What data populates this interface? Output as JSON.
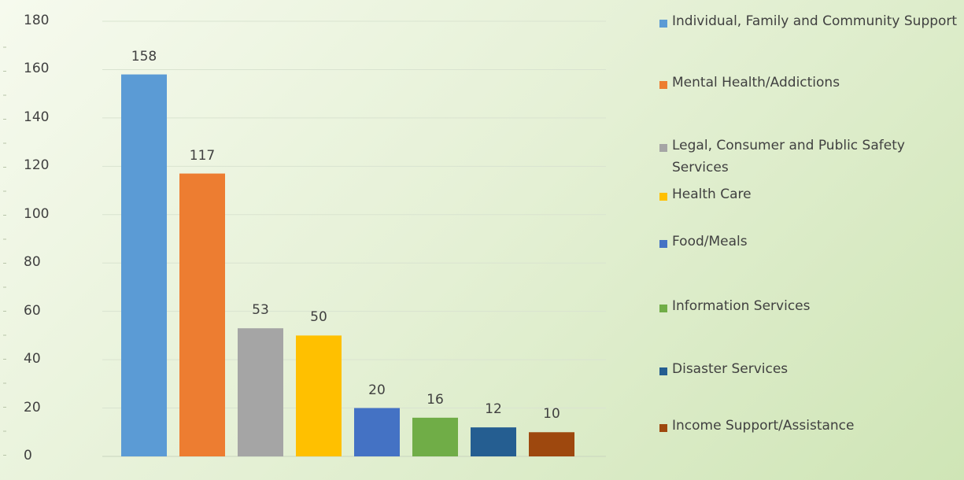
{
  "chart_data": {
    "type": "bar",
    "title": "",
    "xlabel": "",
    "ylabel": "",
    "ylim": [
      0,
      180
    ],
    "yticks": [
      0,
      20,
      40,
      60,
      80,
      100,
      120,
      140,
      160,
      180
    ],
    "grid": true,
    "legend_position": "right",
    "categories": [
      "Individual, Family and Community Support",
      "Mental Health/Addictions",
      "Legal, Consumer and Public Safety Services",
      "Health Care",
      "Food/Meals",
      "Information Services",
      "Disaster Services",
      "Income Support/Assistance"
    ],
    "values": [
      158,
      117,
      53,
      50,
      20,
      16,
      12,
      10
    ],
    "colors": [
      "#5b9bd5",
      "#ed7d31",
      "#a5a5a5",
      "#ffc000",
      "#4472c4",
      "#70ad47",
      "#255e91",
      "#9e480e"
    ]
  }
}
